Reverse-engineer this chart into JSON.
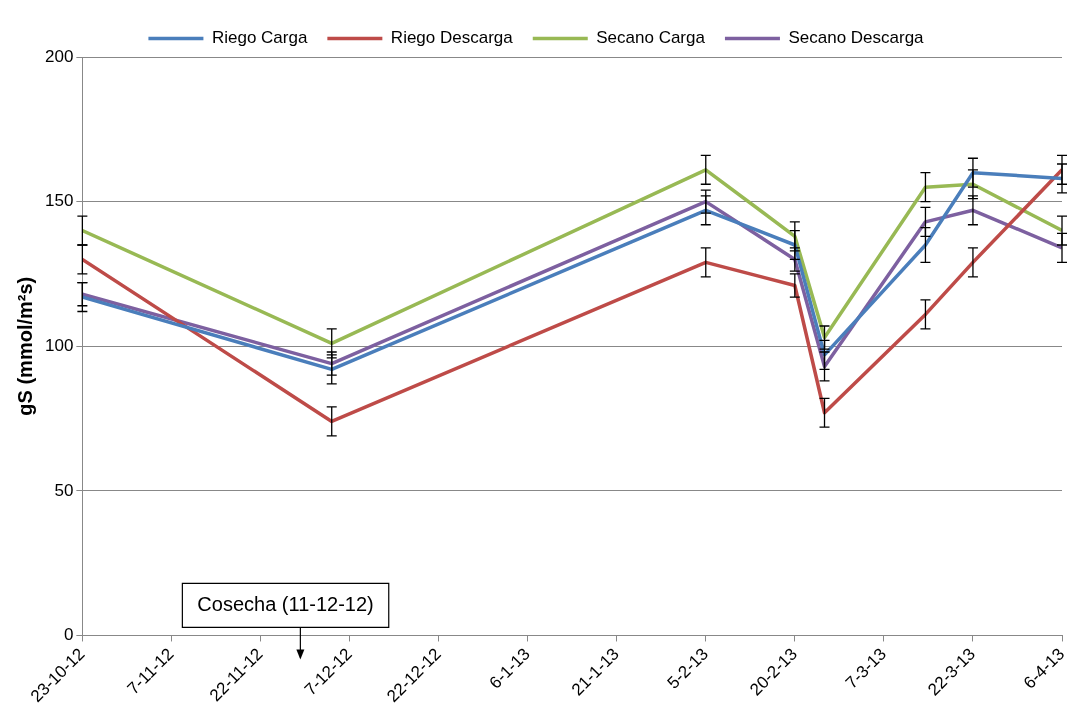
{
  "chart_data": {
    "type": "line",
    "ylabel": "gS (mmol/m²s)",
    "x": [
      "2012-10-23",
      "2012-12-04",
      "2013-02-05",
      "2013-02-20",
      "2013-02-25",
      "2013-03-14",
      "2013-03-22",
      "2013-04-06"
    ],
    "series": [
      {
        "name": "Riego Carga",
        "color": "#4a7ebb",
        "values": [
          117,
          92,
          147,
          135,
          97,
          135,
          160,
          158
        ],
        "errors": [
          5,
          5,
          5,
          5,
          5,
          6,
          5,
          5
        ]
      },
      {
        "name": "Riego Descarga",
        "color": "#be4b48",
        "values": [
          130,
          74,
          129,
          121,
          77,
          111,
          129,
          161
        ],
        "errors": [
          5,
          5,
          5,
          4,
          5,
          5,
          5,
          5
        ]
      },
      {
        "name": "Secano Carga",
        "color": "#98b954",
        "values": [
          140,
          101,
          161,
          138,
          103,
          155,
          156,
          140
        ],
        "errors": [
          5,
          5,
          5,
          5,
          4,
          5,
          5,
          5
        ]
      },
      {
        "name": "Secano Descarga",
        "color": "#7d60a0",
        "values": [
          118,
          94,
          150,
          130,
          93,
          143,
          147,
          134
        ],
        "errors": [
          4,
          4,
          4,
          4,
          5,
          5,
          5,
          5
        ]
      }
    ],
    "xlim": [
      "2012-10-23",
      "2013-04-06"
    ],
    "xticks": [
      {
        "value": "2012-10-23",
        "label": "23-10-12"
      },
      {
        "value": "2012-11-07",
        "label": "7-11-12"
      },
      {
        "value": "2012-11-22",
        "label": "22-11-12"
      },
      {
        "value": "2012-12-07",
        "label": "7-12-12"
      },
      {
        "value": "2012-12-22",
        "label": "22-12-12"
      },
      {
        "value": "2013-01-06",
        "label": "6-1-13"
      },
      {
        "value": "2013-01-21",
        "label": "21-1-13"
      },
      {
        "value": "2013-02-05",
        "label": "5-2-13"
      },
      {
        "value": "2013-02-20",
        "label": "20-2-13"
      },
      {
        "value": "2013-03-07",
        "label": "7-3-13"
      },
      {
        "value": "2013-03-22",
        "label": "22-3-13"
      },
      {
        "value": "2013-04-06",
        "label": "6-4-13"
      }
    ],
    "ylim": [
      0,
      200
    ],
    "yticks": [
      0,
      50,
      100,
      150,
      200
    ],
    "annotations": [
      "Cosecha (11-12-12)"
    ],
    "grid": "y",
    "legend": "top",
    "marker": "none",
    "line_style": "solid"
  }
}
